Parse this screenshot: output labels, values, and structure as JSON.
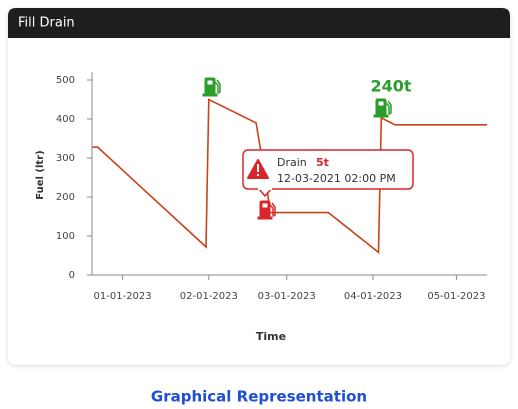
{
  "header": {
    "title": "Fill Drain"
  },
  "chart_data": {
    "type": "line",
    "xlabel": "Time",
    "ylabel": "Fuel (ltr)",
    "x": [
      "2022-12-21",
      "2022-12-23",
      "2023-01-31",
      "2023-02-01",
      "2023-02-18",
      "2023-02-22",
      "2023-02-23",
      "2023-03-16",
      "2023-04-03",
      "2023-04-04",
      "2023-04-07",
      "2023-04-09",
      "2023-05-12"
    ],
    "values": [
      328,
      328,
      72,
      450,
      390,
      220,
      160,
      160,
      58,
      403,
      392,
      385,
      385
    ],
    "color": "#c8441a",
    "xlim": [
      "2022-12-21",
      "2023-05-12"
    ],
    "xticks": [
      {
        "value": "2023-01-01",
        "label": "01-01-2023"
      },
      {
        "value": "2023-02-01",
        "label": "02-01-2023"
      },
      {
        "value": "2023-03-01",
        "label": "03-01-2023"
      },
      {
        "value": "2023-04-01",
        "label": "04-01-2023"
      },
      {
        "value": "2023-05-01",
        "label": "05-01-2023"
      }
    ],
    "ylim": [
      0,
      500
    ],
    "yticks": [
      0,
      100,
      200,
      300,
      400,
      500
    ],
    "annotations": [
      "240t"
    ],
    "tooltip": {
      "title": "Drain",
      "amount": "5t",
      "time": "12-03-2021 02:00 PM"
    }
  },
  "footer": {
    "caption": "Graphical Representation"
  }
}
